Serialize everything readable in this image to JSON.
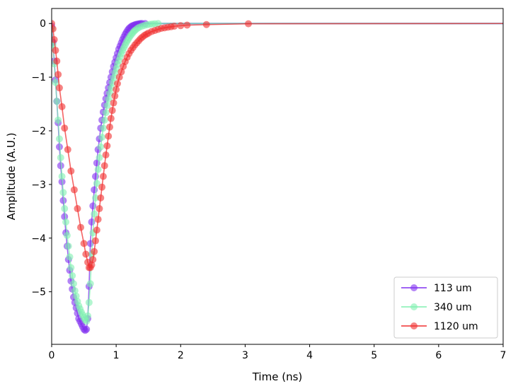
{
  "chart_data": {
    "type": "line",
    "xlabel": "Time (ns)",
    "ylabel": "Amplitude (A.U.)",
    "xlim": [
      0,
      7
    ],
    "ylim": [
      -5.98,
      0.28
    ],
    "xticks": [
      "0",
      "1",
      "2",
      "3",
      "4",
      "5",
      "6",
      "7"
    ],
    "yticks": [
      "0",
      "−1",
      "−2",
      "−3",
      "−4",
      "−5"
    ],
    "grid": false,
    "legend_position": "lower right",
    "series": [
      {
        "name": "113 um",
        "color": "#8030f0",
        "x": [
          0.0,
          0.02,
          0.04,
          0.06,
          0.08,
          0.1,
          0.12,
          0.14,
          0.16,
          0.18,
          0.2,
          0.22,
          0.24,
          0.26,
          0.28,
          0.3,
          0.32,
          0.34,
          0.36,
          0.38,
          0.4,
          0.42,
          0.44,
          0.46,
          0.48,
          0.5,
          0.52,
          0.54,
          0.56,
          0.58,
          0.6,
          0.62,
          0.64,
          0.66,
          0.68,
          0.7,
          0.72,
          0.74,
          0.76,
          0.78,
          0.8,
          0.82,
          0.84,
          0.86,
          0.88,
          0.9,
          0.92,
          0.94,
          0.96,
          0.98,
          1.0,
          1.02,
          1.04,
          1.06,
          1.08,
          1.1,
          1.12,
          1.14,
          1.16,
          1.18,
          1.2,
          1.22,
          1.24,
          1.26,
          1.28,
          1.3,
          1.32,
          1.34,
          1.36,
          1.38,
          1.4,
          1.45,
          7.0
        ],
        "y": [
          -0.05,
          -0.35,
          -0.7,
          -1.05,
          -1.45,
          -1.85,
          -2.3,
          -2.65,
          -2.95,
          -3.3,
          -3.6,
          -3.9,
          -4.15,
          -4.4,
          -4.6,
          -4.8,
          -4.95,
          -5.1,
          -5.2,
          -5.3,
          -5.4,
          -5.5,
          -5.55,
          -5.6,
          -5.65,
          -5.7,
          -5.72,
          -5.7,
          -5.5,
          -4.9,
          -4.1,
          -3.7,
          -3.4,
          -3.1,
          -2.85,
          -2.6,
          -2.35,
          -2.15,
          -1.95,
          -1.8,
          -1.65,
          -1.52,
          -1.4,
          -1.3,
          -1.2,
          -1.1,
          -1.0,
          -0.9,
          -0.8,
          -0.72,
          -0.64,
          -0.56,
          -0.48,
          -0.42,
          -0.36,
          -0.3,
          -0.25,
          -0.2,
          -0.16,
          -0.12,
          -0.09,
          -0.07,
          -0.05,
          -0.04,
          -0.03,
          -0.02,
          -0.015,
          -0.01,
          -0.005,
          -0.002,
          0.0,
          0.0,
          0.0
        ]
      },
      {
        "name": "340 um",
        "color": "#80f0b0",
        "x": [
          0.0,
          0.02,
          0.04,
          0.06,
          0.08,
          0.1,
          0.12,
          0.14,
          0.16,
          0.18,
          0.2,
          0.22,
          0.24,
          0.26,
          0.28,
          0.3,
          0.32,
          0.34,
          0.36,
          0.38,
          0.4,
          0.42,
          0.44,
          0.46,
          0.48,
          0.5,
          0.52,
          0.54,
          0.56,
          0.58,
          0.6,
          0.62,
          0.64,
          0.66,
          0.68,
          0.7,
          0.72,
          0.74,
          0.76,
          0.78,
          0.8,
          0.82,
          0.84,
          0.86,
          0.88,
          0.9,
          0.92,
          0.94,
          0.96,
          0.98,
          1.0,
          1.02,
          1.04,
          1.06,
          1.08,
          1.1,
          1.12,
          1.14,
          1.16,
          1.18,
          1.2,
          1.22,
          1.24,
          1.26,
          1.28,
          1.3,
          1.33,
          1.36,
          1.4,
          1.44,
          1.48,
          1.52,
          1.56,
          1.6,
          1.65,
          7.0
        ],
        "y": [
          -0.1,
          -0.4,
          -0.75,
          -1.1,
          -1.45,
          -1.8,
          -2.15,
          -2.5,
          -2.85,
          -3.15,
          -3.45,
          -3.7,
          -3.95,
          -4.15,
          -4.35,
          -4.55,
          -4.7,
          -4.85,
          -4.98,
          -5.08,
          -5.18,
          -5.26,
          -5.32,
          -5.38,
          -5.43,
          -5.48,
          -5.52,
          -5.55,
          -5.45,
          -5.2,
          -4.85,
          -4.3,
          -3.9,
          -3.55,
          -3.25,
          -2.98,
          -2.72,
          -2.5,
          -2.3,
          -2.12,
          -1.95,
          -1.8,
          -1.66,
          -1.53,
          -1.41,
          -1.3,
          -1.2,
          -1.1,
          -1.01,
          -0.92,
          -0.84,
          -0.76,
          -0.69,
          -0.62,
          -0.56,
          -0.5,
          -0.45,
          -0.4,
          -0.35,
          -0.31,
          -0.27,
          -0.23,
          -0.2,
          -0.17,
          -0.14,
          -0.12,
          -0.09,
          -0.07,
          -0.05,
          -0.035,
          -0.025,
          -0.015,
          -0.01,
          -0.005,
          0.0,
          0.0
        ]
      },
      {
        "name": "1120 um",
        "color": "#f03030",
        "x": [
          0.0,
          0.02,
          0.04,
          0.06,
          0.08,
          0.1,
          0.12,
          0.16,
          0.2,
          0.25,
          0.3,
          0.35,
          0.4,
          0.45,
          0.5,
          0.53,
          0.56,
          0.58,
          0.6,
          0.62,
          0.64,
          0.66,
          0.68,
          0.7,
          0.72,
          0.74,
          0.76,
          0.78,
          0.8,
          0.82,
          0.84,
          0.86,
          0.88,
          0.9,
          0.92,
          0.94,
          0.96,
          0.98,
          1.0,
          1.02,
          1.05,
          1.08,
          1.11,
          1.14,
          1.17,
          1.2,
          1.23,
          1.26,
          1.29,
          1.32,
          1.35,
          1.38,
          1.41,
          1.44,
          1.47,
          1.5,
          1.55,
          1.6,
          1.65,
          1.7,
          1.75,
          1.8,
          1.85,
          1.9,
          2.0,
          2.1,
          2.4,
          3.05,
          7.0
        ],
        "y": [
          0.0,
          -0.1,
          -0.3,
          -0.5,
          -0.7,
          -0.95,
          -1.2,
          -1.55,
          -1.95,
          -2.35,
          -2.75,
          -3.1,
          -3.45,
          -3.8,
          -4.1,
          -4.3,
          -4.45,
          -4.55,
          -4.55,
          -4.5,
          -4.4,
          -4.25,
          -4.05,
          -3.85,
          -3.65,
          -3.45,
          -3.25,
          -3.05,
          -2.85,
          -2.65,
          -2.45,
          -2.28,
          -2.1,
          -1.93,
          -1.77,
          -1.62,
          -1.48,
          -1.35,
          -1.23,
          -1.12,
          -1.0,
          -0.9,
          -0.8,
          -0.71,
          -0.63,
          -0.56,
          -0.5,
          -0.45,
          -0.4,
          -0.36,
          -0.32,
          -0.28,
          -0.25,
          -0.22,
          -0.2,
          -0.18,
          -0.15,
          -0.13,
          -0.11,
          -0.09,
          -0.08,
          -0.07,
          -0.06,
          -0.05,
          -0.04,
          -0.03,
          -0.02,
          -0.005,
          0.0
        ]
      }
    ]
  }
}
